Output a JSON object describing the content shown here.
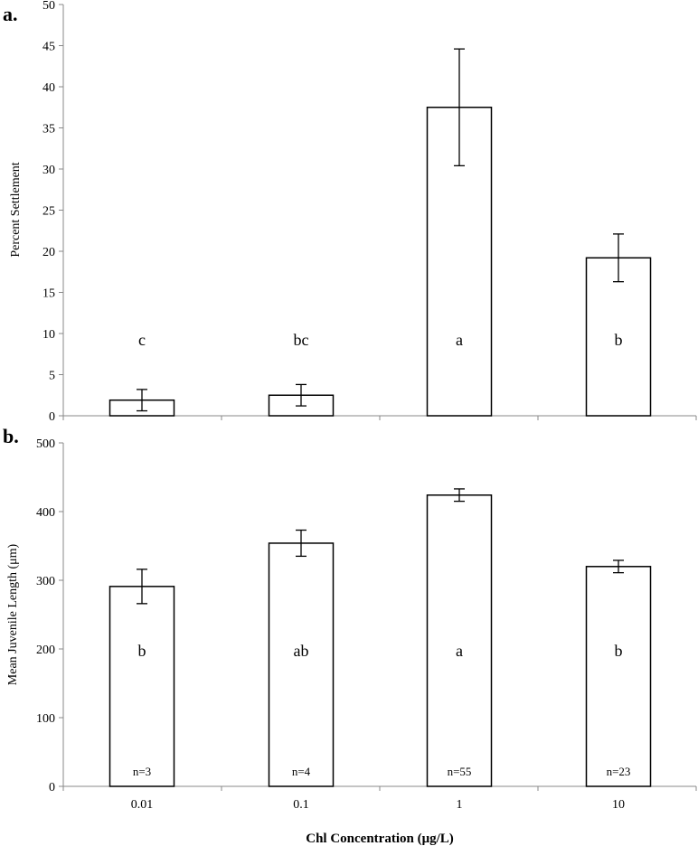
{
  "chart_data": [
    {
      "type": "bar",
      "panel_label": "a.",
      "categories": [
        "0.01",
        "0.1",
        "1",
        "10"
      ],
      "values": [
        1.9,
        2.5,
        37.5,
        19.2
      ],
      "errors": [
        1.3,
        1.3,
        7.1,
        2.9
      ],
      "bar_labels": [
        "c",
        "bc",
        "a",
        "b"
      ],
      "ylabel": "Percent Settlement",
      "ylim": [
        0,
        50
      ],
      "yticks": [
        0,
        5,
        10,
        15,
        20,
        25,
        30,
        35,
        40,
        45,
        50
      ]
    },
    {
      "type": "bar",
      "panel_label": "b.",
      "categories": [
        "0.01",
        "0.1",
        "1",
        "10"
      ],
      "values": [
        291,
        354,
        424,
        320
      ],
      "errors": [
        25,
        19,
        9,
        9
      ],
      "bar_labels": [
        "b",
        "ab",
        "a",
        "b"
      ],
      "n_labels": [
        "n=3",
        "n=4",
        "n=55",
        "n=23"
      ],
      "ylabel": "Mean Juvenile Length (μm)",
      "ylim": [
        0,
        500
      ],
      "yticks": [
        0,
        100,
        200,
        300,
        400,
        500
      ]
    }
  ],
  "xlabel": "Chl Concentration (μg/L)",
  "colors": {
    "bar_fill": "#ffffff",
    "bar_stroke": "#000000",
    "axis": "#888888"
  }
}
